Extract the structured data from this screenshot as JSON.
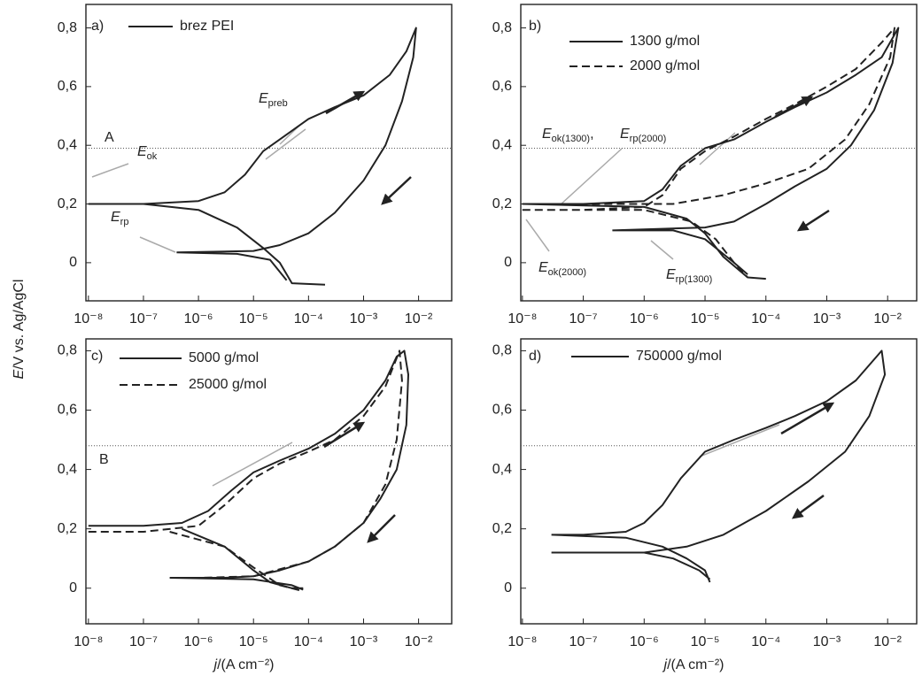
{
  "chart_data": [
    {
      "type": "line",
      "panel_label": "a)",
      "log_x": true,
      "xlim": [
        9e-09,
        0.04
      ],
      "ylim": [
        -0.13,
        0.88
      ],
      "xticks": [
        {
          "value": 1e-08,
          "label": "10⁻⁸"
        },
        {
          "value": 1e-07,
          "label": "10⁻⁷"
        },
        {
          "value": 1e-06,
          "label": "10⁻⁶"
        },
        {
          "value": 1e-05,
          "label": "10⁻⁵"
        },
        {
          "value": 0.0001,
          "label": "10⁻⁴"
        },
        {
          "value": 0.001,
          "label": "10⁻³"
        },
        {
          "value": 0.01,
          "label": "10⁻²"
        }
      ],
      "yticks": [
        0,
        {
          "value": 0.2,
          "label": "0,2"
        },
        {
          "value": 0.4,
          "label": "0,4"
        },
        {
          "value": 0.6,
          "label": "0,6"
        },
        {
          "value": 0.8,
          "label": "0,8"
        }
      ],
      "hline": 0.39,
      "hline_label": "A",
      "y_label": {
        "symbol": "E",
        "unit": "/V vs. Ag/AgCl"
      },
      "annotations": [
        {
          "symbol": "E",
          "sub": "ok"
        },
        {
          "symbol": "E",
          "sub": "rp"
        },
        {
          "symbol": "E",
          "sub": "preb"
        }
      ],
      "series": [
        {
          "name": "brez PEI",
          "color": "#222222",
          "line_style": "solid",
          "x": [
            1e-08,
            1e-07,
            1e-06,
            3e-06,
            7e-06,
            1.5e-05,
            3e-05,
            0.0001,
            0.0003,
            0.001,
            0.003,
            0.006,
            0.009,
            0.008,
            0.005,
            0.0025,
            0.001,
            0.0003,
            0.0001,
            3e-05,
            1e-05,
            4e-07,
            null,
            1e-08,
            1e-07,
            1e-06,
            5e-06,
            1.5e-05,
            3e-05,
            5e-05,
            0.0002,
            null,
            4e-07,
            5e-06,
            2e-05,
            4e-05
          ],
          "values": [
            0.2,
            0.2,
            0.21,
            0.24,
            0.3,
            0.38,
            0.42,
            0.49,
            0.53,
            0.57,
            0.64,
            0.72,
            0.8,
            0.7,
            0.55,
            0.4,
            0.28,
            0.17,
            0.1,
            0.06,
            0.04,
            0.035,
            null,
            0.2,
            0.2,
            0.18,
            0.12,
            0.05,
            0.0,
            -0.07,
            -0.075,
            null,
            0.035,
            0.03,
            0.01,
            -0.06
          ]
        }
      ]
    },
    {
      "type": "line",
      "panel_label": "b)",
      "log_x": true,
      "xlim": [
        9.4e-09,
        0.03
      ],
      "ylim": [
        -0.13,
        0.88
      ],
      "xticks": [
        {
          "value": 1e-08,
          "label": "10⁻⁸"
        },
        {
          "value": 1e-07,
          "label": "10⁻⁷"
        },
        {
          "value": 1e-06,
          "label": "10⁻⁶"
        },
        {
          "value": 1e-05,
          "label": "10⁻⁵"
        },
        {
          "value": 0.0001,
          "label": "10⁻⁴"
        },
        {
          "value": 0.001,
          "label": "10⁻³"
        },
        {
          "value": 0.01,
          "label": "10⁻²"
        }
      ],
      "yticks": [
        0,
        {
          "value": 0.2,
          "label": "0,2"
        },
        {
          "value": 0.4,
          "label": "0,4"
        },
        {
          "value": 0.6,
          "label": "0,6"
        },
        {
          "value": 0.8,
          "label": "0,8"
        }
      ],
      "hline": 0.39,
      "annotations": [
        {
          "symbol": "E",
          "sub": "ok(1300)",
          "suffix": ","
        },
        {
          "symbol": "E",
          "sub": "rp(2000)"
        },
        {
          "symbol": "E",
          "sub": "ok(2000)"
        },
        {
          "symbol": "E",
          "sub": "rp(1300)"
        }
      ],
      "series": [
        {
          "name": "1300 g/mol",
          "color": "#222222",
          "line_style": "solid",
          "x": [
            1e-08,
            1e-07,
            1e-06,
            2e-06,
            4e-06,
            1e-05,
            3e-05,
            0.0001,
            0.0003,
            0.001,
            0.003,
            0.008,
            0.015,
            0.012,
            0.006,
            0.0025,
            0.001,
            0.0003,
            0.0001,
            3e-05,
            1e-05,
            3e-07,
            null,
            1e-08,
            1e-06,
            5e-06,
            1e-05,
            2e-05,
            5e-05,
            0.0001,
            null,
            3e-07,
            3e-06,
            1e-05,
            3e-05,
            5e-05
          ],
          "values": [
            0.2,
            0.2,
            0.21,
            0.25,
            0.33,
            0.39,
            0.42,
            0.48,
            0.53,
            0.58,
            0.64,
            0.7,
            0.8,
            0.68,
            0.52,
            0.4,
            0.32,
            0.26,
            0.2,
            0.14,
            0.12,
            0.11,
            null,
            0.2,
            0.19,
            0.15,
            0.1,
            0.02,
            -0.05,
            -0.055,
            null,
            0.11,
            0.11,
            0.08,
            0.0,
            -0.04
          ]
        },
        {
          "name": "2000 g/mol",
          "color": "#222222",
          "line_style": "dashed",
          "x": [
            1e-08,
            1e-07,
            1e-06,
            2e-06,
            4e-06,
            1e-05,
            3e-05,
            0.0001,
            0.0003,
            0.001,
            0.003,
            0.008,
            0.013,
            0.011,
            0.005,
            0.002,
            0.0005,
            0.0001,
            2e-05,
            3e-06,
            1e-07,
            1e-08,
            null,
            1e-08,
            1e-06,
            6e-06,
            1.5e-05,
            3e-05,
            5e-05
          ],
          "values": [
            0.18,
            0.18,
            0.19,
            0.23,
            0.32,
            0.38,
            0.43,
            0.49,
            0.54,
            0.6,
            0.66,
            0.75,
            0.8,
            0.7,
            0.54,
            0.42,
            0.32,
            0.27,
            0.23,
            0.2,
            0.2,
            0.2,
            null,
            0.18,
            0.18,
            0.14,
            0.08,
            0.0,
            -0.05
          ]
        }
      ]
    },
    {
      "type": "line",
      "panel_label": "c)",
      "log_x": true,
      "xlim": [
        9e-09,
        0.04
      ],
      "ylim": [
        -0.12,
        0.84
      ],
      "xticks": [
        {
          "value": 1e-08,
          "label": "10⁻⁸"
        },
        {
          "value": 1e-07,
          "label": "10⁻⁷"
        },
        {
          "value": 1e-06,
          "label": "10⁻⁶"
        },
        {
          "value": 1e-05,
          "label": "10⁻⁵"
        },
        {
          "value": 0.0001,
          "label": "10⁻⁴"
        },
        {
          "value": 0.001,
          "label": "10⁻³"
        },
        {
          "value": 0.01,
          "label": "10⁻²"
        }
      ],
      "yticks": [
        0,
        {
          "value": 0.2,
          "label": "0,2"
        },
        {
          "value": 0.4,
          "label": "0,4"
        },
        {
          "value": 0.6,
          "label": "0,6"
        },
        {
          "value": 0.8,
          "label": "0,8"
        }
      ],
      "hline": 0.48,
      "hline_label": "B",
      "x_label": {
        "symbol": "j",
        "unit": "/(A cm⁻²)"
      },
      "series": [
        {
          "name": "5000 g/mol",
          "color": "#222222",
          "line_style": "solid",
          "x": [
            1e-08,
            1e-07,
            5e-07,
            1.5e-06,
            4e-06,
            1e-05,
            3e-05,
            0.0001,
            0.0003,
            0.001,
            0.0025,
            0.004,
            0.0055,
            0.0065,
            0.006,
            0.004,
            0.002,
            0.001,
            0.0003,
            0.0001,
            3e-05,
            1e-05,
            3e-06,
            3e-07,
            null,
            5e-07,
            3e-06,
            1e-05,
            2e-05,
            5e-05,
            8e-05,
            null,
            3e-07,
            1e-05,
            5e-05,
            8e-05
          ],
          "values": [
            0.21,
            0.21,
            0.22,
            0.26,
            0.33,
            0.39,
            0.43,
            0.47,
            0.52,
            0.6,
            0.7,
            0.78,
            0.8,
            0.72,
            0.55,
            0.4,
            0.3,
            0.22,
            0.14,
            0.09,
            0.06,
            0.04,
            0.035,
            0.035,
            null,
            0.2,
            0.14,
            0.06,
            0.02,
            0.0,
            0.0,
            null,
            0.035,
            0.03,
            0.01,
            -0.005
          ]
        },
        {
          "name": "25000 g/mol",
          "color": "#222222",
          "line_style": "dashed",
          "x": [
            1e-08,
            1e-07,
            1e-06,
            3e-06,
            1e-05,
            3e-05,
            0.0001,
            0.0003,
            0.001,
            0.0025,
            0.0045,
            0.005,
            0.004,
            0.0025,
            0.001,
            0.0003,
            0.0001,
            1e-05,
            1e-06,
            null,
            3e-07,
            3e-06,
            1e-05,
            3e-05,
            8e-05
          ],
          "values": [
            0.19,
            0.19,
            0.21,
            0.28,
            0.37,
            0.42,
            0.46,
            0.5,
            0.58,
            0.68,
            0.8,
            0.7,
            0.5,
            0.35,
            0.22,
            0.14,
            0.09,
            0.04,
            0.035,
            null,
            0.19,
            0.14,
            0.07,
            0.01,
            -0.01
          ]
        }
      ]
    },
    {
      "type": "line",
      "panel_label": "d)",
      "log_x": true,
      "xlim": [
        9.4e-09,
        0.03
      ],
      "ylim": [
        -0.12,
        0.84
      ],
      "xticks": [
        {
          "value": 1e-08,
          "label": "10⁻⁸"
        },
        {
          "value": 1e-07,
          "label": "10⁻⁷"
        },
        {
          "value": 1e-06,
          "label": "10⁻⁶"
        },
        {
          "value": 1e-05,
          "label": "10⁻⁵"
        },
        {
          "value": 0.0001,
          "label": "10⁻⁴"
        },
        {
          "value": 0.001,
          "label": "10⁻³"
        },
        {
          "value": 0.01,
          "label": "10⁻²"
        }
      ],
      "yticks": [
        0,
        {
          "value": 0.2,
          "label": "0,2"
        },
        {
          "value": 0.4,
          "label": "0,4"
        },
        {
          "value": 0.6,
          "label": "0,6"
        },
        {
          "value": 0.8,
          "label": "0,8"
        }
      ],
      "hline": 0.48,
      "x_label": {
        "symbol": "j",
        "unit": "/(A cm⁻²)"
      },
      "series": [
        {
          "name": "750000 g/mol",
          "color": "#222222",
          "line_style": "solid",
          "x": [
            3e-08,
            1e-07,
            5e-07,
            1e-06,
            2e-06,
            4e-06,
            1e-05,
            3e-05,
            0.0001,
            0.0003,
            0.001,
            0.003,
            0.008,
            0.009,
            0.005,
            0.002,
            0.0005,
            0.0001,
            2e-05,
            5e-06,
            1e-06,
            3e-08,
            null,
            3e-08,
            5e-07,
            2e-06,
            5e-06,
            1e-05,
            1.2e-05,
            null,
            3e-08,
            1e-06,
            3e-06,
            8e-06,
            1.2e-05
          ],
          "values": [
            0.18,
            0.18,
            0.19,
            0.22,
            0.28,
            0.37,
            0.46,
            0.5,
            0.54,
            0.58,
            0.63,
            0.7,
            0.8,
            0.72,
            0.58,
            0.46,
            0.36,
            0.26,
            0.18,
            0.14,
            0.12,
            0.12,
            null,
            0.18,
            0.17,
            0.14,
            0.1,
            0.06,
            0.02,
            null,
            0.12,
            0.12,
            0.1,
            0.06,
            0.03
          ]
        }
      ]
    }
  ]
}
